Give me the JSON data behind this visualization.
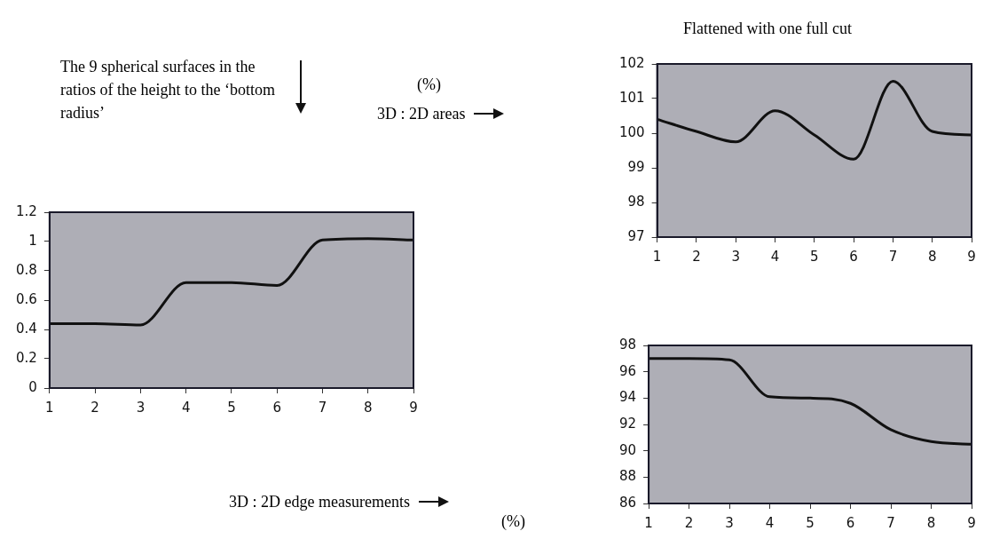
{
  "chart_data": [
    {
      "type": "line",
      "title": "Flattened with one full cut",
      "annotations": [
        "(%)",
        "3D : 2D areas"
      ],
      "x": [
        1,
        2,
        3,
        4,
        5,
        6,
        7,
        8,
        9
      ],
      "series": [
        {
          "color": "#111111",
          "values": [
            100.4,
            100.05,
            99.75,
            100.65,
            99.95,
            99.25,
            101.5,
            100.05,
            99.95
          ]
        }
      ],
      "xlim": [
        1,
        9
      ],
      "xticks": [
        1,
        2,
        3,
        4,
        5,
        6,
        7,
        8,
        9
      ],
      "ylim": [
        97,
        102
      ],
      "yticks": [
        97,
        98,
        99,
        100,
        101,
        102
      ],
      "grid": false,
      "legend": false,
      "marker": "none",
      "line_style": "solid"
    },
    {
      "type": "line",
      "annotations": [
        "The 9 spherical surfaces in the ratios of the height to the ‘bottom radius’"
      ],
      "x": [
        1,
        2,
        3,
        4,
        5,
        6,
        7,
        8,
        9
      ],
      "series": [
        {
          "color": "#111111",
          "values": [
            0.44,
            0.44,
            0.43,
            0.72,
            0.72,
            0.7,
            1.01,
            1.02,
            1.01
          ]
        }
      ],
      "xlim": [
        1,
        9
      ],
      "xticks": [
        1,
        2,
        3,
        4,
        5,
        6,
        7,
        8,
        9
      ],
      "ylim": [
        0,
        1.2
      ],
      "yticks": [
        0,
        0.2,
        0.4,
        0.6,
        0.8,
        1,
        1.2
      ],
      "grid": false,
      "legend": false,
      "marker": "none",
      "line_style": "solid"
    },
    {
      "type": "line",
      "annotations": [
        "3D : 2D edge measurements",
        "(%)"
      ],
      "x": [
        1,
        2,
        3,
        4,
        5,
        6,
        7,
        8,
        9
      ],
      "series": [
        {
          "color": "#111111",
          "values": [
            97,
            97,
            96.9,
            94.1,
            94,
            93.6,
            91.6,
            90.7,
            90.5
          ]
        }
      ],
      "xlim": [
        1,
        9
      ],
      "xticks": [
        1,
        2,
        3,
        4,
        5,
        6,
        7,
        8,
        9
      ],
      "ylim": [
        86,
        98
      ],
      "yticks": [
        86,
        88,
        90,
        92,
        94,
        96,
        98
      ],
      "grid": false,
      "legend": false,
      "marker": "none",
      "line_style": "solid"
    }
  ]
}
